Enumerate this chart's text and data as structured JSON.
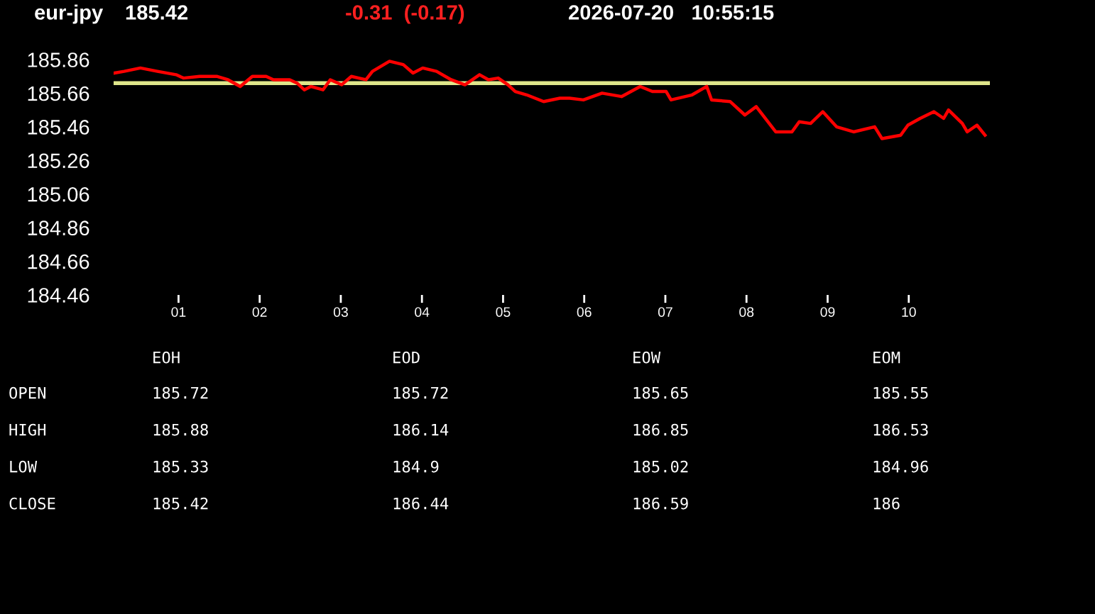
{
  "chart_data": {
    "type": "line",
    "title": "eur-jpy",
    "annotations": [
      "185.42",
      "-0.31  (-0.17)",
      "2026-07-20   10:55:15",
      "EOH",
      "EOD",
      "EOW",
      "EOM",
      "OPEN",
      "185.72",
      "185.72",
      "185.65",
      "185.55",
      "HIGH",
      "185.88",
      "186.14",
      "186.85",
      "186.53",
      "LOW",
      "185.33",
      "184.9",
      "185.02",
      "184.96",
      "CLOSE",
      "185.42",
      "186.44",
      "186.59",
      "186"
    ],
    "series": [
      {
        "color": "#ff0000",
        "x": [
          0.21,
          0.33,
          0.53,
          0.74,
          0.97,
          1.06,
          1.26,
          1.47,
          1.61,
          1.76,
          1.91,
          2.08,
          2.17,
          2.37,
          2.46,
          2.55,
          2.63,
          2.78,
          2.87,
          3.01,
          3.13,
          3.31,
          3.39,
          3.6,
          3.77,
          3.89,
          4.01,
          4.18,
          4.36,
          4.53,
          4.71,
          4.82,
          4.94,
          5.06,
          5.15,
          5.29,
          5.5,
          5.7,
          5.82,
          5.99,
          6.22,
          6.46,
          6.69,
          6.84,
          7.01,
          7.07,
          7.33,
          7.51,
          7.57,
          7.8,
          7.98,
          8.12,
          8.36,
          8.56,
          8.65,
          8.79,
          8.94,
          9.11,
          9.32,
          9.58,
          9.67,
          9.9,
          9.99,
          10.14,
          10.31,
          10.43,
          10.49,
          10.66,
          10.72,
          10.84,
          10.94
        ],
        "values": [
          185.78,
          185.79,
          185.81,
          185.79,
          185.77,
          185.75,
          185.76,
          185.76,
          185.74,
          185.7,
          185.76,
          185.76,
          185.74,
          185.74,
          185.72,
          185.68,
          185.7,
          185.68,
          185.74,
          185.71,
          185.76,
          185.74,
          185.79,
          185.85,
          185.83,
          185.78,
          185.81,
          185.79,
          185.74,
          185.71,
          185.77,
          185.74,
          185.75,
          185.71,
          185.67,
          185.65,
          185.61,
          185.63,
          185.63,
          185.62,
          185.66,
          185.64,
          185.7,
          185.67,
          185.67,
          185.62,
          185.65,
          185.7,
          185.62,
          185.61,
          185.53,
          185.58,
          185.43,
          185.43,
          185.49,
          185.48,
          185.55,
          185.46,
          185.43,
          185.46,
          185.39,
          185.41,
          185.47,
          185.51,
          185.55,
          185.51,
          185.56,
          185.48,
          185.43,
          185.47,
          185.41
        ]
      }
    ],
    "ref_lines": [
      {
        "axis": "y",
        "value": 185.72,
        "color": "#dfe68a"
      }
    ],
    "xlim": [
      0.2,
      11.0
    ],
    "xticks": [
      {
        "value": 1,
        "label": "01"
      },
      {
        "value": 2,
        "label": "02"
      },
      {
        "value": 3,
        "label": "03"
      },
      {
        "value": 4,
        "label": "04"
      },
      {
        "value": 5,
        "label": "05"
      },
      {
        "value": 6,
        "label": "06"
      },
      {
        "value": 7,
        "label": "07"
      },
      {
        "value": 8,
        "label": "08"
      },
      {
        "value": 9,
        "label": "09"
      },
      {
        "value": 10,
        "label": "10"
      }
    ],
    "ylim": [
      184.46,
      185.86
    ],
    "yticks": [
      185.86,
      185.66,
      185.46,
      185.26,
      185.06,
      184.86,
      184.66,
      184.46
    ],
    "marker": "none",
    "line_style": "solid"
  }
}
